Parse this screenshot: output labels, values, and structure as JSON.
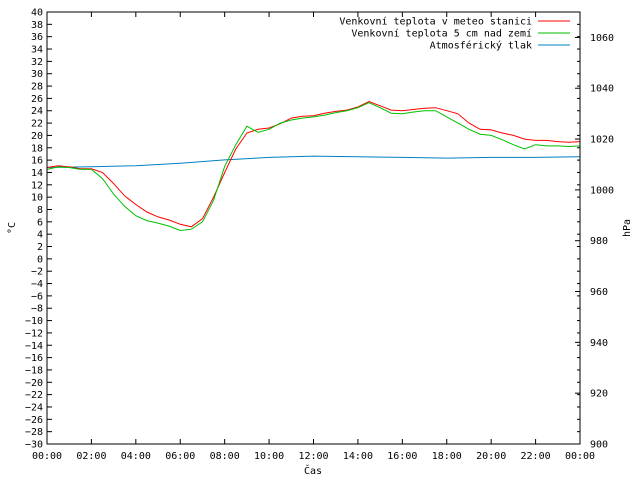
{
  "chart_data": {
    "type": "line",
    "xlabel": "Čas",
    "ylabel_left": "°C",
    "ylabel_right": "hPa",
    "x_ticks": [
      "00:00",
      "02:00",
      "04:00",
      "06:00",
      "08:00",
      "10:00",
      "12:00",
      "14:00",
      "16:00",
      "18:00",
      "20:00",
      "22:00",
      "00:00"
    ],
    "x_range_hours": [
      0,
      24
    ],
    "ylim_left": [
      -30,
      40
    ],
    "ylim_right": [
      900,
      1070
    ],
    "y_ticks_left": [
      40,
      38,
      36,
      34,
      32,
      30,
      28,
      26,
      24,
      22,
      20,
      18,
      16,
      14,
      12,
      10,
      8,
      6,
      4,
      2,
      0,
      -2,
      -4,
      -6,
      -8,
      -10,
      -12,
      -14,
      -16,
      -18,
      -20,
      -22,
      -24,
      -26,
      -28,
      -30
    ],
    "y_ticks_right": [
      1060,
      1040,
      1020,
      1000,
      980,
      960,
      940,
      920,
      900
    ],
    "legend_position": "top-right",
    "grid": false,
    "series": [
      {
        "name": "Venkovní teplota v meteo stanici",
        "axis": "left",
        "color": "#ff0000",
        "x": [
          0,
          0.5,
          1,
          1.5,
          2,
          2.5,
          3,
          3.5,
          4,
          4.5,
          5,
          5.5,
          6,
          6.5,
          7,
          7.5,
          8,
          8.5,
          9,
          9.5,
          10,
          10.5,
          11,
          11.5,
          12,
          12.5,
          13,
          13.5,
          14,
          14.5,
          15,
          15.5,
          16,
          16.5,
          17,
          17.5,
          18,
          18.5,
          19,
          19.5,
          20,
          20.5,
          21,
          21.5,
          22,
          22.5,
          23,
          23.5,
          24
        ],
        "values": [
          14.8,
          15.1,
          14.9,
          14.6,
          14.6,
          14.0,
          12.2,
          10.2,
          8.8,
          7.6,
          6.8,
          6.3,
          5.6,
          5.2,
          6.5,
          10.0,
          14.0,
          17.8,
          20.4,
          21.0,
          21.2,
          21.9,
          22.8,
          23.1,
          23.2,
          23.6,
          23.9,
          24.1,
          24.6,
          25.5,
          24.8,
          24.1,
          24.0,
          24.2,
          24.4,
          24.5,
          24.0,
          23.5,
          22.0,
          21.0,
          20.9,
          20.4,
          20.0,
          19.4,
          19.2,
          19.2,
          19.0,
          18.9,
          19.0
        ]
      },
      {
        "name": "Venkovní teplota 5 cm nad zemí",
        "axis": "left",
        "color": "#00c000",
        "x": [
          0,
          0.5,
          1,
          1.5,
          2,
          2.5,
          3,
          3.5,
          4,
          4.5,
          5,
          5.5,
          6,
          6.5,
          7,
          7.5,
          8,
          8.5,
          9,
          9.5,
          10,
          10.5,
          11,
          11.5,
          12,
          12.5,
          13,
          13.5,
          14,
          14.5,
          15,
          15.5,
          16,
          16.5,
          17,
          17.5,
          18,
          18.5,
          19,
          19.5,
          20,
          20.5,
          21,
          21.5,
          22,
          22.5,
          23,
          23.5,
          24
        ],
        "values": [
          14.5,
          14.9,
          14.8,
          14.5,
          14.5,
          13.0,
          10.5,
          8.5,
          7.0,
          6.2,
          5.8,
          5.3,
          4.6,
          4.8,
          6.0,
          9.5,
          15.0,
          18.5,
          21.5,
          20.5,
          21.0,
          22.0,
          22.5,
          22.8,
          23.0,
          23.3,
          23.7,
          24.0,
          24.5,
          25.3,
          24.5,
          23.6,
          23.5,
          23.8,
          24.0,
          24.0,
          23.0,
          22.0,
          21.0,
          20.2,
          20.0,
          19.3,
          18.5,
          17.8,
          18.5,
          18.3,
          18.3,
          18.2,
          18.3
        ]
      },
      {
        "name": "Atmosférický tlak",
        "axis": "right",
        "color": "#0080c0",
        "x": [
          0,
          2,
          4,
          6,
          8,
          10,
          12,
          14,
          16,
          18,
          20,
          22,
          24
        ],
        "values": [
          1008.8,
          1009.1,
          1009.5,
          1010.5,
          1011.8,
          1012.8,
          1013.3,
          1013.0,
          1012.8,
          1012.5,
          1012.8,
          1012.8,
          1013.0
        ]
      }
    ]
  }
}
